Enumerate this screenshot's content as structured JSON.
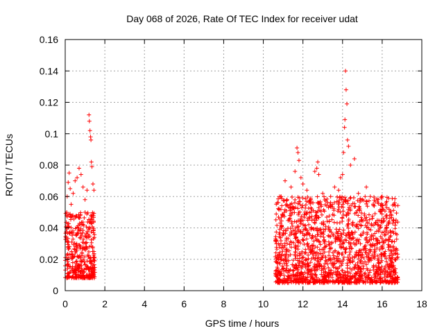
{
  "chart_data": {
    "type": "scatter",
    "title": "Day 068 of 2026, Rate Of TEC Index for receiver udat",
    "xlabel": "GPS time / hours",
    "ylabel": "ROTI / TECUs",
    "xlim": [
      0,
      18
    ],
    "ylim": [
      0,
      0.16
    ],
    "grid": true,
    "marker": "plus",
    "color": "#ff0000",
    "xticks": [
      0,
      2,
      4,
      6,
      8,
      10,
      12,
      14,
      16,
      18
    ],
    "xtick_labels": [
      "0",
      "2",
      "4",
      "6",
      "8",
      "10",
      "12",
      "14",
      "16",
      "18"
    ],
    "yticks": [
      0,
      0.02,
      0.04,
      0.06,
      0.08,
      0.1,
      0.12,
      0.14,
      0.16
    ],
    "ytick_labels": [
      "0",
      "0.02",
      "0.04",
      "0.06",
      "0.08",
      "0.1",
      "0.12",
      "0.14",
      "0.16"
    ],
    "segments": [
      {
        "x_start": 0.0,
        "x_end": 1.5,
        "typical_min": 0.008,
        "typical_max": 0.05
      },
      {
        "x_start": 10.6,
        "x_end": 16.8,
        "typical_min": 0.005,
        "typical_max": 0.06
      }
    ],
    "series": [
      {
        "name": "ROTI",
        "points": [
          [
            0.05,
            0.034
          ],
          [
            0.1,
            0.06
          ],
          [
            0.15,
            0.069
          ],
          [
            0.2,
            0.075
          ],
          [
            0.25,
            0.065
          ],
          [
            0.3,
            0.055
          ],
          [
            0.4,
            0.062
          ],
          [
            0.5,
            0.07
          ],
          [
            0.6,
            0.072
          ],
          [
            0.7,
            0.078
          ],
          [
            0.8,
            0.074
          ],
          [
            0.9,
            0.066
          ],
          [
            1.0,
            0.058
          ],
          [
            1.1,
            0.064
          ],
          [
            1.2,
            0.112
          ],
          [
            1.22,
            0.108
          ],
          [
            1.25,
            0.102
          ],
          [
            1.28,
            0.098
          ],
          [
            1.3,
            0.096
          ],
          [
            1.32,
            0.082
          ],
          [
            1.35,
            0.079
          ],
          [
            1.4,
            0.068
          ],
          [
            1.45,
            0.064
          ],
          [
            10.7,
            0.056
          ],
          [
            10.8,
            0.052
          ],
          [
            10.9,
            0.06
          ],
          [
            11.0,
            0.048
          ],
          [
            11.1,
            0.07
          ],
          [
            11.2,
            0.058
          ],
          [
            11.4,
            0.066
          ],
          [
            11.6,
            0.076
          ],
          [
            11.7,
            0.091
          ],
          [
            11.75,
            0.088
          ],
          [
            11.8,
            0.083
          ],
          [
            11.9,
            0.072
          ],
          [
            12.0,
            0.068
          ],
          [
            12.2,
            0.064
          ],
          [
            12.4,
            0.058
          ],
          [
            12.6,
            0.076
          ],
          [
            12.7,
            0.078
          ],
          [
            12.75,
            0.082
          ],
          [
            12.8,
            0.074
          ],
          [
            13.0,
            0.062
          ],
          [
            13.2,
            0.054
          ],
          [
            13.4,
            0.06
          ],
          [
            13.6,
            0.066
          ],
          [
            13.8,
            0.064
          ],
          [
            13.9,
            0.072
          ],
          [
            14.0,
            0.074
          ],
          [
            14.05,
            0.088
          ],
          [
            14.1,
            0.104
          ],
          [
            14.12,
            0.109
          ],
          [
            14.15,
            0.14
          ],
          [
            14.18,
            0.128
          ],
          [
            14.22,
            0.119
          ],
          [
            14.25,
            0.096
          ],
          [
            14.3,
            0.092
          ],
          [
            14.4,
            0.08
          ],
          [
            14.6,
            0.084
          ],
          [
            14.8,
            0.062
          ],
          [
            15.0,
            0.058
          ],
          [
            15.2,
            0.066
          ],
          [
            15.4,
            0.06
          ],
          [
            15.6,
            0.054
          ],
          [
            15.8,
            0.058
          ],
          [
            16.0,
            0.06
          ],
          [
            16.2,
            0.056
          ],
          [
            16.4,
            0.05
          ],
          [
            16.6,
            0.055
          ],
          [
            16.7,
            0.045
          ]
        ]
      }
    ]
  }
}
